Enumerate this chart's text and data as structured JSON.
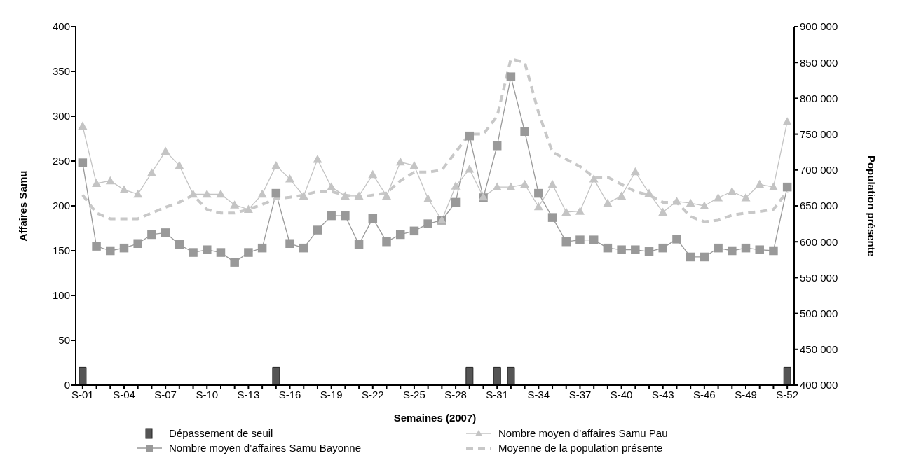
{
  "chart_data": {
    "type": "line",
    "xlabel": "Semaines (2007)",
    "ylabel": "Affaires Samu",
    "y2label": "Population présente",
    "legend": "bottom",
    "categories": [
      "S-01",
      null,
      null,
      "S-04",
      null,
      null,
      "S-07",
      null,
      null,
      "S-10",
      null,
      null,
      "S-13",
      null,
      null,
      "S-16",
      null,
      null,
      "S-19",
      null,
      null,
      "S-22",
      null,
      null,
      "S-25",
      null,
      null,
      "S-28",
      null,
      null,
      "S-31",
      null,
      null,
      "S-34",
      null,
      null,
      "S-37",
      null,
      null,
      "S-40",
      null,
      null,
      "S-43",
      null,
      null,
      "S-46",
      null,
      null,
      "S-49",
      null,
      null,
      "S-52"
    ],
    "ylim": [
      0,
      400
    ],
    "yticks": [
      0,
      50,
      100,
      150,
      200,
      250,
      300,
      350,
      400
    ],
    "y2lim": [
      400000,
      900000
    ],
    "y2ticks": [
      {
        "value": 400000,
        "label": "400 000"
      },
      {
        "value": 450000,
        "label": "450 000"
      },
      {
        "value": 500000,
        "label": "500 000"
      },
      {
        "value": 550000,
        "label": "550 000"
      },
      {
        "value": 600000,
        "label": "600 000"
      },
      {
        "value": 650000,
        "label": "650 000"
      },
      {
        "value": 700000,
        "label": "700 000"
      },
      {
        "value": 750000,
        "label": "750 000"
      },
      {
        "value": 800000,
        "label": "800 000"
      },
      {
        "value": 850000,
        "label": "850 000"
      },
      {
        "value": 900000,
        "label": "900 000"
      }
    ],
    "series": [
      {
        "name": "Dépassement de seuil",
        "type": "bar",
        "color": "#555555",
        "values": [
          20,
          null,
          null,
          null,
          null,
          null,
          null,
          null,
          null,
          null,
          null,
          null,
          null,
          null,
          20,
          null,
          null,
          null,
          null,
          null,
          null,
          null,
          null,
          null,
          null,
          null,
          null,
          null,
          20,
          null,
          20,
          20,
          null,
          null,
          null,
          null,
          null,
          null,
          null,
          null,
          null,
          null,
          null,
          null,
          null,
          null,
          null,
          null,
          null,
          null,
          null,
          20
        ]
      },
      {
        "name": "Nombre moyen d’affaires Samu Bayonne",
        "color": "#999999",
        "marker": "square",
        "line_style": "solid",
        "values": [
          248,
          155,
          150,
          153,
          158,
          168,
          170,
          157,
          148,
          151,
          148,
          137,
          148,
          153,
          214,
          158,
          153,
          173,
          189,
          189,
          157,
          186,
          160,
          168,
          172,
          180,
          184,
          204,
          278,
          209,
          267,
          344,
          283,
          214,
          187,
          160,
          162,
          162,
          153,
          151,
          151,
          149,
          153,
          163,
          143,
          143,
          153,
          150,
          153,
          151,
          150,
          221
        ]
      },
      {
        "name": "Nombre moyen d’affaires Samu Pau",
        "color": "#c4c4c4",
        "marker": "triangle",
        "line_style": "solid",
        "values": [
          289,
          225,
          228,
          218,
          213,
          237,
          261,
          245,
          213,
          213,
          213,
          201,
          196,
          213,
          245,
          230,
          211,
          252,
          221,
          211,
          211,
          235,
          211,
          249,
          245,
          208,
          184,
          222,
          241,
          210,
          221,
          221,
          224,
          199,
          224,
          193,
          194,
          230,
          203,
          211,
          238,
          214,
          193,
          205,
          203,
          200,
          209,
          216,
          209,
          224,
          221,
          294
        ]
      },
      {
        "name": "Moyenne de la population présente",
        "color": "#c8c8c8",
        "axis": "y2",
        "marker": "none",
        "line_style": "dashed",
        "values": [
          665000,
          640000,
          632000,
          632000,
          632000,
          640000,
          648000,
          655000,
          665000,
          645000,
          640000,
          640000,
          645000,
          652000,
          660000,
          662000,
          665000,
          670000,
          670000,
          665000,
          662000,
          665000,
          668000,
          685000,
          697000,
          697000,
          700000,
          725000,
          750000,
          750000,
          775000,
          855000,
          850000,
          780000,
          725000,
          715000,
          705000,
          690000,
          690000,
          680000,
          670000,
          665000,
          655000,
          655000,
          635000,
          628000,
          630000,
          637000,
          640000,
          642000,
          645000,
          670000
        ]
      }
    ]
  }
}
